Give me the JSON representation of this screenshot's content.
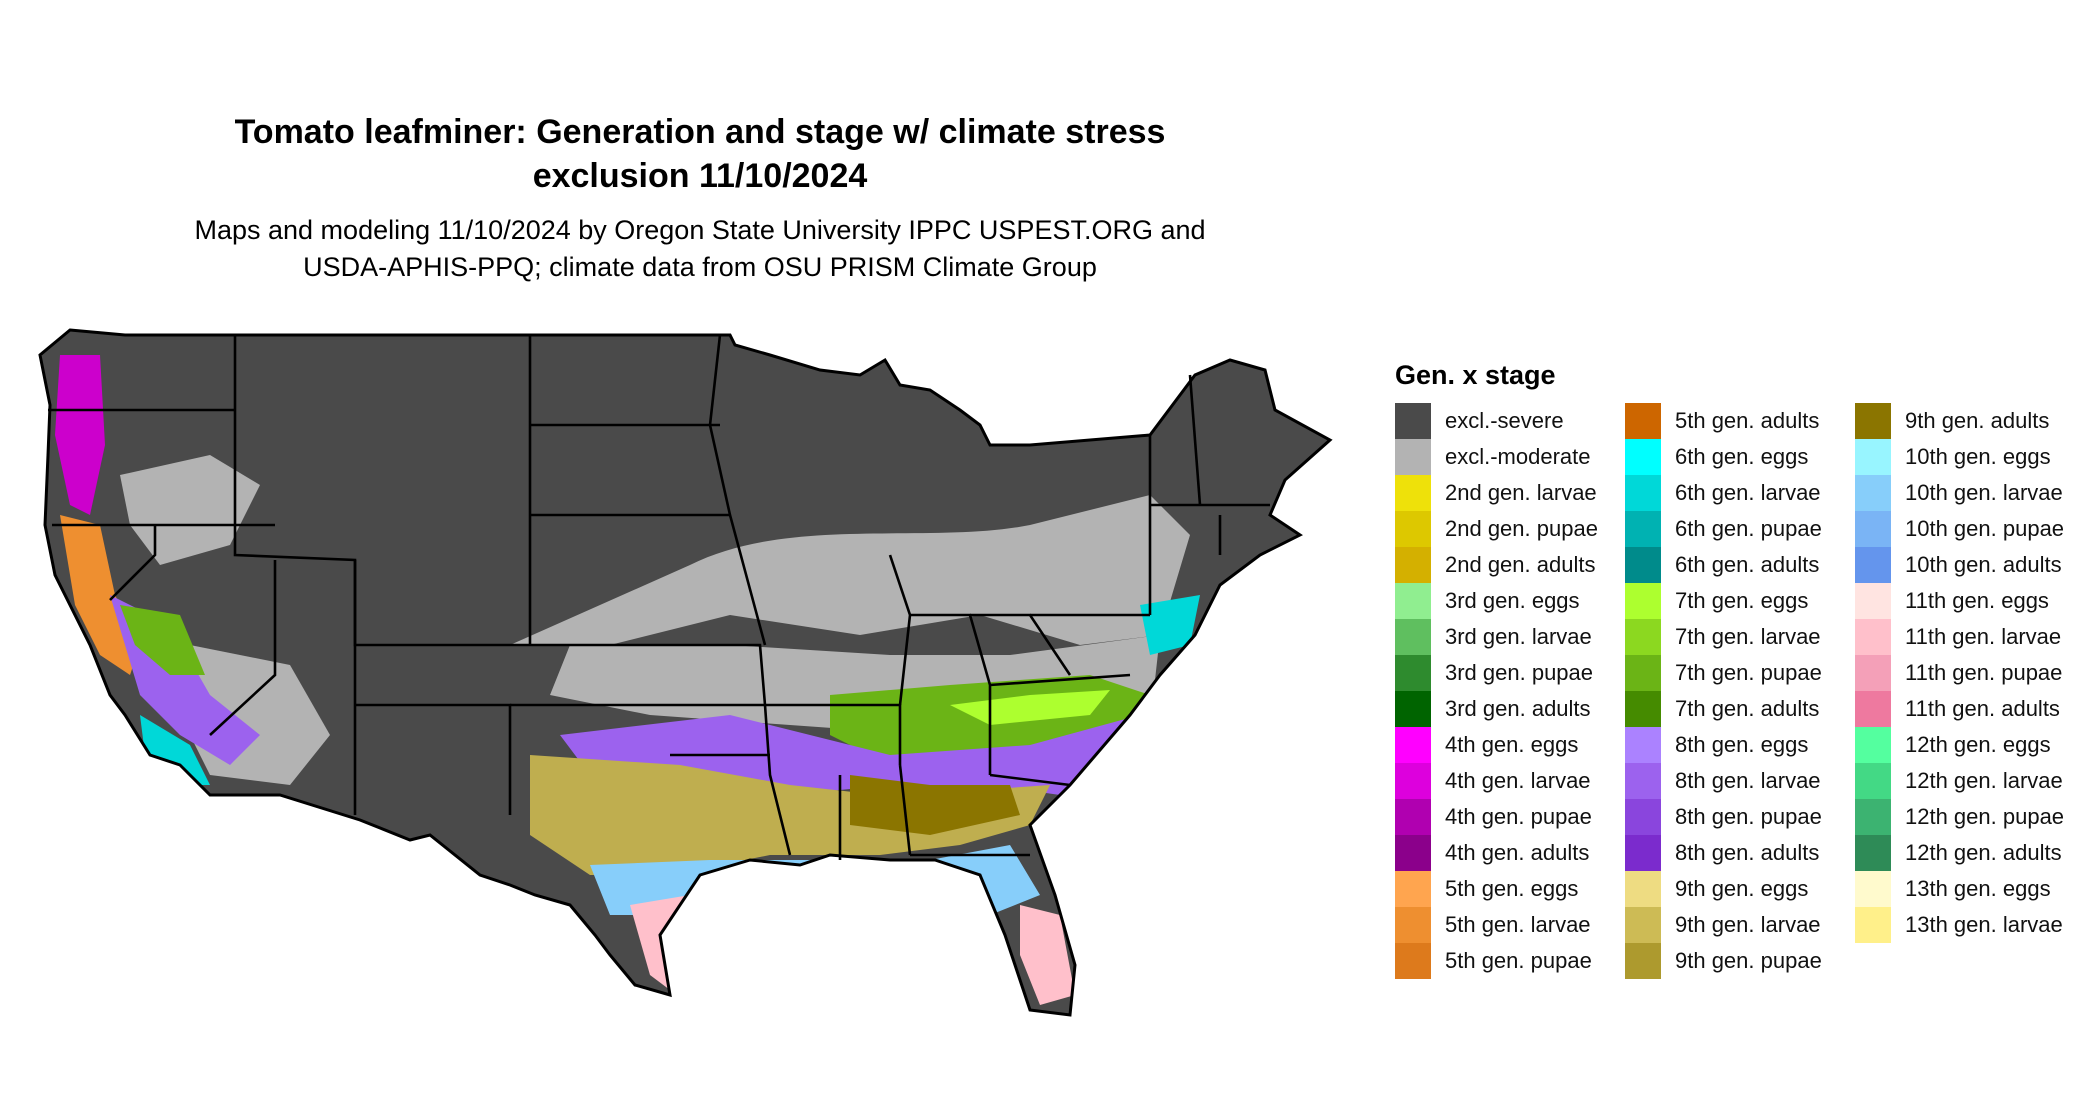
{
  "title": {
    "line1": "Tomato leafminer: Generation and stage w/ climate stress",
    "line2": "exclusion 11/10/2024"
  },
  "subtitle": {
    "line1": "Maps and modeling 11/10/2024 by Oregon State University IPPC USPEST.ORG and",
    "line2": "USDA-APHIS-PPQ; climate data from OSU PRISM Climate Group"
  },
  "legend": {
    "title": "Gen. x stage",
    "items": [
      {
        "label": "excl.-severe",
        "color": "#4a4a4a"
      },
      {
        "label": "excl.-moderate",
        "color": "#b3b3b3"
      },
      {
        "label": "2nd gen. larvae",
        "color": "#eee10a"
      },
      {
        "label": "2nd gen. pupae",
        "color": "#ddc800"
      },
      {
        "label": "2nd gen. adults",
        "color": "#d4b000"
      },
      {
        "label": "3rd gen. eggs",
        "color": "#90ee90"
      },
      {
        "label": "3rd gen. larvae",
        "color": "#5fbf5f"
      },
      {
        "label": "3rd gen. pupae",
        "color": "#2e8b2e"
      },
      {
        "label": "3rd gen. adults",
        "color": "#006400"
      },
      {
        "label": "4th gen. eggs",
        "color": "#ff00ff"
      },
      {
        "label": "4th gen. larvae",
        "color": "#dd00dd"
      },
      {
        "label": "4th gen. pupae",
        "color": "#b000b0"
      },
      {
        "label": "4th gen. adults",
        "color": "#8b008b"
      },
      {
        "label": "5th gen. eggs",
        "color": "#ffa54f"
      },
      {
        "label": "5th gen. larvae",
        "color": "#ee8f30"
      },
      {
        "label": "5th gen. pupae",
        "color": "#dd7a1c"
      },
      {
        "label": "5th gen. adults",
        "color": "#cd6600"
      },
      {
        "label": "6th gen. eggs",
        "color": "#00ffff"
      },
      {
        "label": "6th gen. larvae",
        "color": "#00d8d8"
      },
      {
        "label": "6th gen. pupae",
        "color": "#00b2b2"
      },
      {
        "label": "6th gen. adults",
        "color": "#008b8b"
      },
      {
        "label": "7th gen. eggs",
        "color": "#adff2f"
      },
      {
        "label": "7th gen. larvae",
        "color": "#8cd820"
      },
      {
        "label": "7th gen. pupae",
        "color": "#6bb416"
      },
      {
        "label": "7th gen. adults",
        "color": "#458b00"
      },
      {
        "label": "8th gen. eggs",
        "color": "#ab82ff"
      },
      {
        "label": "8th gen. larvae",
        "color": "#9c62ee"
      },
      {
        "label": "8th gen. pupae",
        "color": "#8a45dd"
      },
      {
        "label": "8th gen. adults",
        "color": "#7b2bcd"
      },
      {
        "label": "9th gen. eggs",
        "color": "#eedc82"
      },
      {
        "label": "9th gen. larvae",
        "color": "#cdbb55"
      },
      {
        "label": "9th gen. pupae",
        "color": "#ad9a2e"
      },
      {
        "label": "9th gen. adults",
        "color": "#8b7500"
      },
      {
        "label": "10th gen. eggs",
        "color": "#98f5ff"
      },
      {
        "label": "10th gen. larvae",
        "color": "#87cefa"
      },
      {
        "label": "10th gen. pupae",
        "color": "#7ab4f5"
      },
      {
        "label": "10th gen. adults",
        "color": "#6495ed"
      },
      {
        "label": "11th gen. eggs",
        "color": "#ffe4e1"
      },
      {
        "label": "11th gen. larvae",
        "color": "#ffc0cb"
      },
      {
        "label": "11th gen. pupae",
        "color": "#f4a0b8"
      },
      {
        "label": "11th gen. adults",
        "color": "#ee799f"
      },
      {
        "label": "12th gen. eggs",
        "color": "#54ff9f"
      },
      {
        "label": "12th gen. larvae",
        "color": "#43d985"
      },
      {
        "label": "12th gen. pupae",
        "color": "#3cb371"
      },
      {
        "label": "12th gen. adults",
        "color": "#2e8b57"
      },
      {
        "label": "13th gen. eggs",
        "color": "#fffacd"
      },
      {
        "label": "13th gen. larvae",
        "color": "#fff08a"
      }
    ]
  }
}
